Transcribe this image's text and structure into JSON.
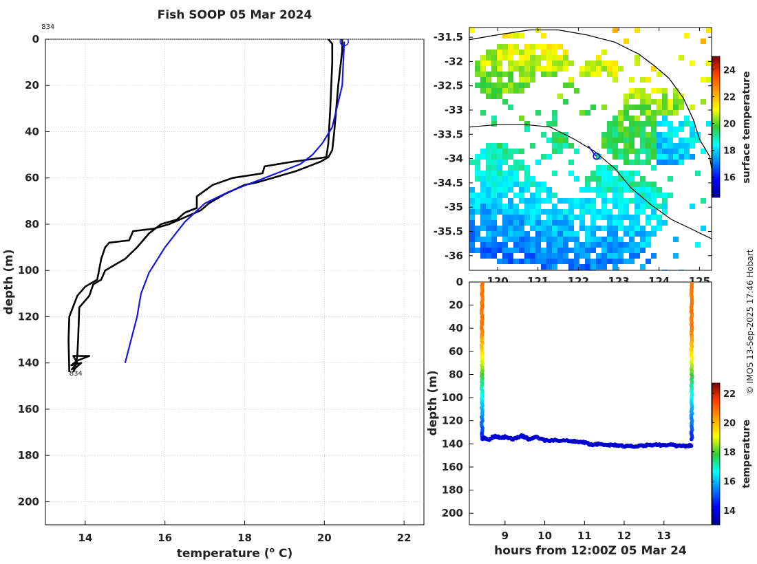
{
  "title": "Fish SOOP 05 Mar 2024",
  "credit": "© IMOS 13-Sep-2025 17:46 Hobart",
  "colors": {
    "black": "#000000",
    "blue": "#1414e6",
    "grid": "#b8b8b8"
  },
  "chart_data": [
    {
      "id": "profile",
      "type": "line",
      "xlabel": "temperature (o C)",
      "xlabel_main": "temperature (",
      "xlabel_sup": "o",
      "xlabel_end": " C)",
      "ylabel": "depth (m)",
      "xlim": [
        13,
        22.5
      ],
      "ylim": [
        210,
        0
      ],
      "xticks": [
        14,
        16,
        18,
        20,
        22
      ],
      "yticks": [
        0,
        20,
        40,
        60,
        80,
        100,
        120,
        140,
        160,
        180,
        200
      ],
      "grid": true,
      "annotations": [
        {
          "text": "834",
          "x": 12.9,
          "y": -4.5
        },
        {
          "text": "834",
          "x": 13.6,
          "y": 145.5
        }
      ],
      "series": [
        {
          "name": "descent",
          "color": "#000000",
          "points": [
            [
              20.1,
              0
            ],
            [
              20.2,
              2
            ],
            [
              20.2,
              10
            ],
            [
              20.15,
              30
            ],
            [
              20.1,
              45
            ],
            [
              20.05,
              51
            ],
            [
              19.2,
              53
            ],
            [
              18.5,
              55
            ],
            [
              18.45,
              58
            ],
            [
              17.7,
              60
            ],
            [
              17.2,
              63
            ],
            [
              16.8,
              68
            ],
            [
              16.8,
              73
            ],
            [
              16.5,
              75
            ],
            [
              16.3,
              78
            ],
            [
              15.9,
              80
            ],
            [
              15.6,
              84
            ],
            [
              15.3,
              90
            ],
            [
              15.0,
              95
            ],
            [
              14.5,
              100
            ],
            [
              14.4,
              104
            ],
            [
              14.2,
              106
            ],
            [
              14.1,
              111
            ],
            [
              13.85,
              116
            ],
            [
              13.82,
              130
            ],
            [
              13.8,
              137
            ],
            [
              13.75,
              142
            ],
            [
              13.7,
              144
            ]
          ]
        },
        {
          "name": "ascent",
          "color": "#000000",
          "points": [
            [
              13.6,
              144
            ],
            [
              13.58,
              130
            ],
            [
              13.6,
              120
            ],
            [
              13.8,
              111
            ],
            [
              14.0,
              107
            ],
            [
              14.3,
              104
            ],
            [
              14.4,
              95
            ],
            [
              14.5,
              90
            ],
            [
              14.6,
              88
            ],
            [
              15.1,
              87
            ],
            [
              15.2,
              83
            ],
            [
              15.7,
              82
            ],
            [
              16.1,
              80
            ],
            [
              16.5,
              77
            ],
            [
              16.9,
              74
            ],
            [
              17.1,
              71
            ],
            [
              17.5,
              67
            ],
            [
              18.0,
              63
            ],
            [
              18.3,
              62
            ],
            [
              18.7,
              60
            ],
            [
              19.3,
              57
            ],
            [
              19.9,
              53
            ],
            [
              20.1,
              51
            ],
            [
              20.2,
              48
            ],
            [
              20.25,
              40
            ],
            [
              20.35,
              20
            ],
            [
              20.45,
              5
            ],
            [
              20.45,
              0
            ]
          ]
        },
        {
          "name": "bottom",
          "color": "#000000",
          "points": [
            [
              13.65,
              143
            ],
            [
              13.8,
              140
            ],
            [
              13.7,
              137
            ],
            [
              14.1,
              137
            ],
            [
              13.8,
              139
            ],
            [
              13.65,
              141
            ],
            [
              13.9,
              140
            ],
            [
              13.7,
              143
            ]
          ]
        },
        {
          "name": "model",
          "color": "#1414e6",
          "points": [
            [
              20.5,
              1
            ],
            [
              20.45,
              20
            ],
            [
              20.2,
              38
            ],
            [
              19.95,
              45
            ],
            [
              19.7,
              50
            ],
            [
              19.4,
              54
            ],
            [
              18.8,
              58
            ],
            [
              18.2,
              62
            ],
            [
              17.6,
              66
            ],
            [
              17.0,
              71
            ],
            [
              16.5,
              79
            ],
            [
              16.0,
              90
            ],
            [
              15.6,
              101
            ],
            [
              15.4,
              110
            ],
            [
              15.3,
              120
            ],
            [
              15.15,
              130
            ],
            [
              15.0,
              140
            ]
          ]
        }
      ],
      "markers": [
        {
          "type": "circle",
          "x": 20.5,
          "y": 1
        }
      ]
    },
    {
      "id": "map",
      "type": "heatmap",
      "colorbar_label": "surface temperature",
      "colorbar_ticks": [
        16,
        18,
        20,
        22,
        24
      ],
      "clim": [
        14.5,
        25
      ],
      "xlim": [
        119.3,
        125.3
      ],
      "ylim": [
        -36.3,
        -31.3
      ],
      "xticks": [
        120,
        121,
        122,
        123,
        124,
        125
      ],
      "yticks": [
        -31.5,
        -32,
        -32.5,
        -33,
        -33.5,
        -34,
        -34.5,
        -35,
        -35.5,
        -36
      ],
      "track_end": {
        "lon": 122.45,
        "lat": -33.95
      }
    },
    {
      "id": "section",
      "type": "scatter",
      "xlabel": "hours from 12:00Z 05 Mar 24",
      "ylabel": "depth (m)",
      "colorbar_label": "temperature",
      "colorbar_ticks": [
        14,
        16,
        18,
        20,
        22
      ],
      "clim": [
        13,
        22.7
      ],
      "xlim": [
        8.1,
        14.2
      ],
      "ylim": [
        210,
        0
      ],
      "xticks": [
        9,
        10,
        11,
        12,
        13
      ],
      "yticks": [
        0,
        20,
        40,
        60,
        80,
        100,
        120,
        140,
        160,
        180,
        200
      ],
      "bottom_trace": [
        [
          8.45,
          135
        ],
        [
          8.6,
          136
        ],
        [
          8.75,
          133
        ],
        [
          8.9,
          135
        ],
        [
          9.0,
          134
        ],
        [
          9.2,
          136
        ],
        [
          9.4,
          133
        ],
        [
          9.5,
          134
        ],
        [
          9.6,
          136
        ],
        [
          9.75,
          134
        ],
        [
          10.0,
          137
        ],
        [
          10.3,
          137
        ],
        [
          10.6,
          137
        ],
        [
          10.8,
          138
        ],
        [
          11.0,
          139
        ],
        [
          11.2,
          141
        ],
        [
          11.4,
          140
        ],
        [
          11.6,
          141
        ],
        [
          11.8,
          141
        ],
        [
          12.0,
          142
        ],
        [
          12.2,
          142
        ],
        [
          12.4,
          142
        ],
        [
          12.6,
          141
        ],
        [
          12.8,
          141
        ],
        [
          13.0,
          141
        ],
        [
          13.2,
          141
        ],
        [
          13.4,
          142
        ],
        [
          13.6,
          142
        ],
        [
          13.7,
          141
        ]
      ]
    }
  ]
}
